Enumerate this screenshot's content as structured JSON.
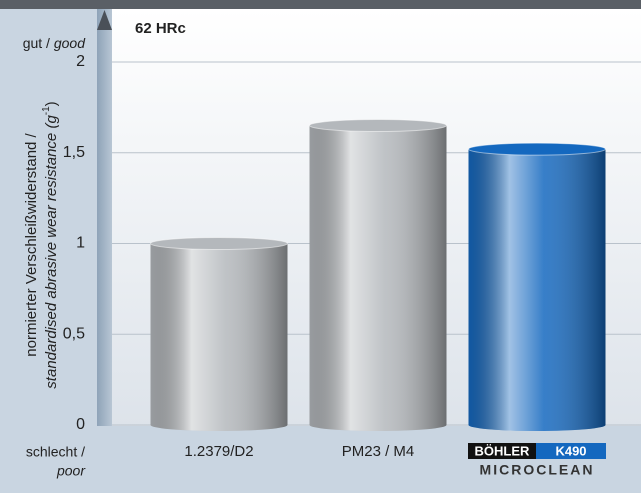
{
  "chart_data": {
    "type": "bar",
    "title": "62 HRc",
    "y_label": {
      "line1": "normierter Verschleißwiderstand /",
      "line2": "standardised abrasive wear resistance (g",
      "exponent": "-1",
      "close": ")"
    },
    "top_label": {
      "de": "gut /",
      "en": "good"
    },
    "bottom_label": {
      "de": "schlecht /",
      "en": "poor"
    },
    "categories": [
      "1.2379/D2",
      "PM23 / M4",
      "K490"
    ],
    "logo": {
      "brand": "BÖHLER",
      "line": "MICROCLEAN"
    },
    "values": [
      1.0,
      1.65,
      1.52
    ],
    "colors": [
      "#b4b8bc",
      "#b4b8bc",
      "#1468bf"
    ],
    "ylim": [
      0,
      2
    ],
    "yticks": [
      0,
      {
        "value": 0.5,
        "label": "0,5"
      },
      1,
      {
        "value": 1.5,
        "label": "1,5"
      },
      2
    ],
    "grid": true
  }
}
